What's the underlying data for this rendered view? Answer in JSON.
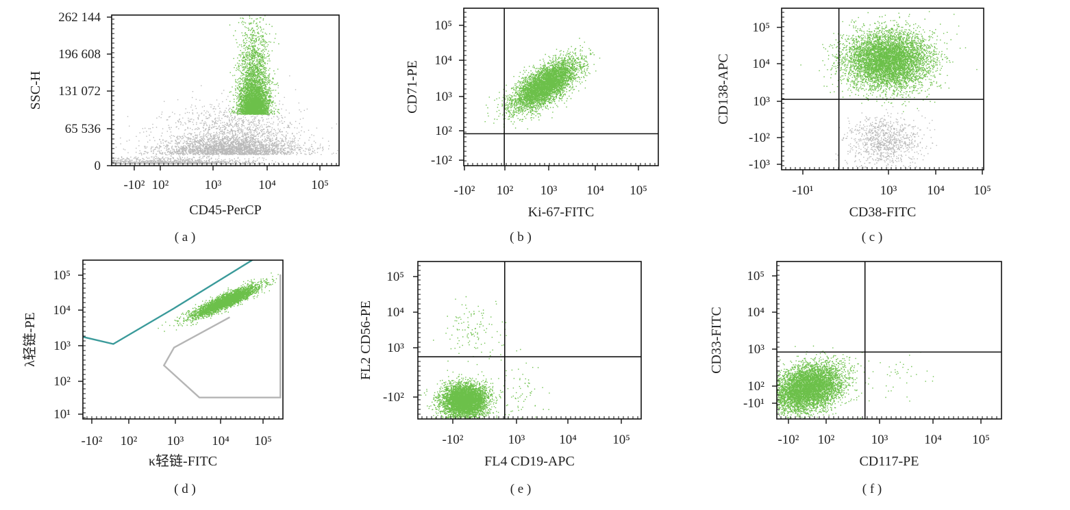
{
  "colors": {
    "positive": "#6cc04a",
    "negative": "#b9b9b9",
    "gate_teal": "#3a9a9a",
    "gate_grey": "#b5b5b5",
    "axis": "#111111"
  },
  "chart_data": [
    {
      "id": "a",
      "type": "scatter",
      "caption": "( a )",
      "xlabel": "CD45-PerCP",
      "ylabel": "SSC-H",
      "x_scale": "biexponential",
      "y_scale": "linear",
      "x_ticks": [
        "-10²",
        "10²",
        "10³",
        "10⁴",
        "10⁵"
      ],
      "y_ticks": [
        "0",
        "65 536",
        "131 072",
        "196 608",
        "262 144"
      ],
      "ylim": [
        0,
        262144
      ],
      "gates": [],
      "populations": [
        {
          "color": "negative",
          "points": 3500,
          "x_log_center": 3.6,
          "x_log_sd": 0.55,
          "y_center": 20000,
          "y_sd": 25000
        },
        {
          "color": "negative",
          "points": 1200,
          "x_log_center": 2.6,
          "x_log_sd": 0.7,
          "y_center": 4000,
          "y_sd": 4000
        },
        {
          "color": "positive",
          "points": 4500,
          "x_log_center": 3.95,
          "x_log_sd": 0.12,
          "y_center": 90000,
          "y_sd": 45000
        }
      ]
    },
    {
      "id": "b",
      "type": "scatter",
      "caption": "( b )",
      "xlabel": "Ki-67-FITC",
      "ylabel": "CD71-PE",
      "x_ticks": [
        "-10²",
        "10²",
        "10³",
        "10⁴",
        "10⁵"
      ],
      "y_ticks": [
        "-10²",
        "10²",
        "10³",
        "10⁴",
        "10⁵"
      ],
      "quadrant": {
        "x_log": 2.45,
        "y_log": 2.45
      },
      "gates": [],
      "populations": [
        {
          "color": "positive",
          "points": 5000,
          "x_log_center": 3.2,
          "x_log_sd": 0.3,
          "y_log_center": 3.6,
          "y_log_sd": 0.3,
          "corr": 0.7
        }
      ]
    },
    {
      "id": "c",
      "type": "scatter",
      "caption": "( c )",
      "xlabel": "CD38-FITC",
      "ylabel": "CD138-APC",
      "x_ticks": [
        "-10¹",
        "10³",
        "10⁴",
        "10⁵"
      ],
      "y_ticks": [
        "-10³",
        "-10²",
        "10³",
        "10⁴",
        "10⁵"
      ],
      "quadrant": {
        "x_log": 2.75,
        "y_log": 3.0
      },
      "gates": [],
      "populations": [
        {
          "color": "negative",
          "points": 900,
          "x_log_center": 3.5,
          "x_log_sd": 0.3,
          "y_log_center": 2.0,
          "y_log_sd": 0.3,
          "corr": 0
        },
        {
          "color": "positive",
          "points": 6000,
          "x_log_center": 3.55,
          "x_log_sd": 0.35,
          "y_log_center": 3.95,
          "y_log_sd": 0.35,
          "corr": 0
        }
      ]
    },
    {
      "id": "d",
      "type": "scatter",
      "caption": "( d )",
      "xlabel": "κ轻链-FITC",
      "ylabel": "λ轻链-PE",
      "x_ticks": [
        "-10²",
        "10²",
        "10³",
        "10⁴",
        "10⁵"
      ],
      "y_ticks": [
        "10¹",
        "10²",
        "10³",
        "10⁴",
        "10⁵"
      ],
      "gates": [
        {
          "color": "gate_teal",
          "points_log": [
            [
              1.4,
              5.4
            ],
            [
              1.5,
              3.2
            ],
            [
              2.1,
              3.0
            ],
            [
              3.3,
              4.0
            ],
            [
              4.9,
              5.4
            ]
          ]
        },
        {
          "color": "gate_grey",
          "points_log": [
            [
              5.4,
              4.95
            ],
            [
              5.4,
              1.5
            ],
            [
              3.8,
              1.5
            ],
            [
              3.1,
              2.4
            ],
            [
              3.3,
              2.9
            ],
            [
              4.4,
              3.75
            ]
          ]
        }
      ],
      "populations": [
        {
          "color": "positive",
          "points": 3500,
          "x_log_center": 4.3,
          "x_log_sd": 0.32,
          "y_log_center": 4.2,
          "y_log_sd": 0.22,
          "corr": 0.9
        }
      ]
    },
    {
      "id": "e",
      "type": "scatter",
      "caption": "( e )",
      "xlabel": "FL4 CD19-APC",
      "ylabel": "FL2 CD56-PE",
      "x_ticks": [
        "-10²",
        "10³",
        "10⁴",
        "10⁵"
      ],
      "y_ticks": [
        "-10²",
        "10³",
        "10⁴",
        "10⁵"
      ],
      "quadrant": {
        "x_log": 3.0,
        "y_log": 3.0
      },
      "gates": [],
      "populations": [
        {
          "color": "positive",
          "points": 5000,
          "x_log_center": 2.35,
          "x_log_sd": 0.18,
          "y_log_center": 1.95,
          "y_log_sd": 0.2,
          "corr": 0
        },
        {
          "color": "positive",
          "points": 120,
          "x_log_center": 2.5,
          "x_log_sd": 0.25,
          "y_log_center": 3.6,
          "y_log_sd": 0.35,
          "corr": 0
        },
        {
          "color": "positive",
          "points": 90,
          "x_log_center": 3.2,
          "x_log_sd": 0.25,
          "y_log_center": 2.1,
          "y_log_sd": 0.4,
          "corr": 0
        }
      ]
    },
    {
      "id": "f",
      "type": "scatter",
      "caption": "( f )",
      "xlabel": "CD117-PE",
      "ylabel": "CD33-FITC",
      "x_ticks": [
        "-10²",
        "10²",
        "10³",
        "10⁴",
        "10⁵"
      ],
      "y_ticks": [
        "-10¹",
        "10²",
        "10³",
        "10⁴",
        "10⁵"
      ],
      "quadrant": {
        "x_log": 2.95,
        "y_log": 3.0
      },
      "gates": [],
      "populations": [
        {
          "color": "positive",
          "points": 5500,
          "x_log_center": 1.95,
          "x_log_sd": 0.3,
          "y_log_center": 2.1,
          "y_log_sd": 0.3,
          "corr": 0.3
        },
        {
          "color": "positive",
          "points": 40,
          "x_log_center": 3.5,
          "x_log_sd": 0.3,
          "y_log_center": 2.3,
          "y_log_sd": 0.3,
          "corr": 0
        }
      ]
    }
  ]
}
